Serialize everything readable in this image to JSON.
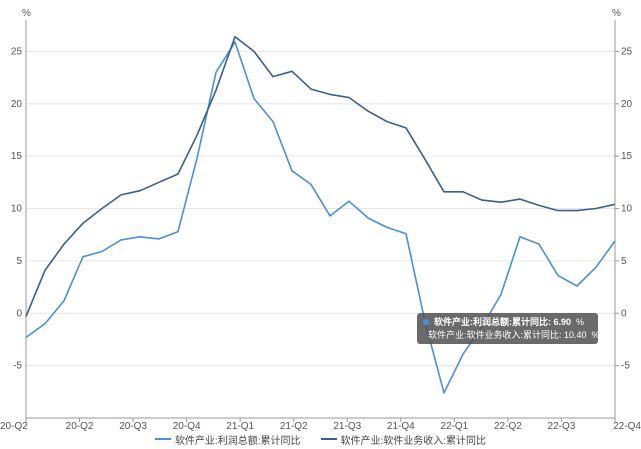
{
  "chart_data": {
    "type": "line",
    "left_unit": "%",
    "right_unit": "%",
    "ylim": [
      -10,
      28
    ],
    "yticks": [
      -5,
      0,
      5,
      10,
      15,
      20,
      25
    ],
    "xticks": [
      "20-Q2",
      "20-Q2",
      "20-Q3",
      "20-Q4",
      "21-Q1",
      "21-Q2",
      "21-Q3",
      "21-Q4",
      "22-Q1",
      "22-Q2",
      "22-Q3",
      "22-Q4"
    ],
    "x": [
      "2020-02",
      "2020-03",
      "2020-04",
      "2020-05",
      "2020-06",
      "2020-07",
      "2020-08",
      "2020-09",
      "2020-10",
      "2020-11",
      "2020-12",
      "2021-02",
      "2021-03",
      "2021-04",
      "2021-05",
      "2021-06",
      "2021-07",
      "2021-08",
      "2021-09",
      "2021-10",
      "2021-11",
      "2021-12",
      "2022-02",
      "2022-03",
      "2022-04",
      "2022-05",
      "2022-06",
      "2022-07",
      "2022-08",
      "2022-09",
      "2022-10",
      "2022-11"
    ],
    "series": [
      {
        "name": "软件产业:利润总额:累计同比",
        "color": "#4a90d9",
        "values": [
          -2.3,
          -1.0,
          1.2,
          5.4,
          5.9,
          7.0,
          7.3,
          7.1,
          7.8,
          14.8,
          23.0,
          25.9,
          20.5,
          18.3,
          13.6,
          12.3,
          9.3,
          10.7,
          9.1,
          8.2,
          7.6,
          -0.8,
          -7.6,
          -3.9,
          -1.3,
          1.8,
          7.3,
          6.6,
          3.6,
          2.6,
          4.4,
          6.9
        ]
      },
      {
        "name": "软件产业:软件业务收入:累计同比",
        "color": "#3a5f8a",
        "values": [
          -0.3,
          4.1,
          6.6,
          8.6,
          10.0,
          11.3,
          11.7,
          12.5,
          13.3,
          17.0,
          21.3,
          26.4,
          25.0,
          22.6,
          23.1,
          21.4,
          20.9,
          20.6,
          19.3,
          18.3,
          17.7,
          14.7,
          11.6,
          11.6,
          10.8,
          10.6,
          10.9,
          10.3,
          9.8,
          9.8,
          10.0,
          10.4
        ]
      }
    ],
    "tooltip": {
      "rows": [
        {
          "label": "软件产业:利润总额:累计同比: 6.90",
          "unit": "%",
          "color": "#4a90d9"
        },
        {
          "label": "软件产业:软件业务收入:累计同比: 10.40",
          "unit": "%",
          "color": "#2b4a80"
        }
      ]
    }
  }
}
